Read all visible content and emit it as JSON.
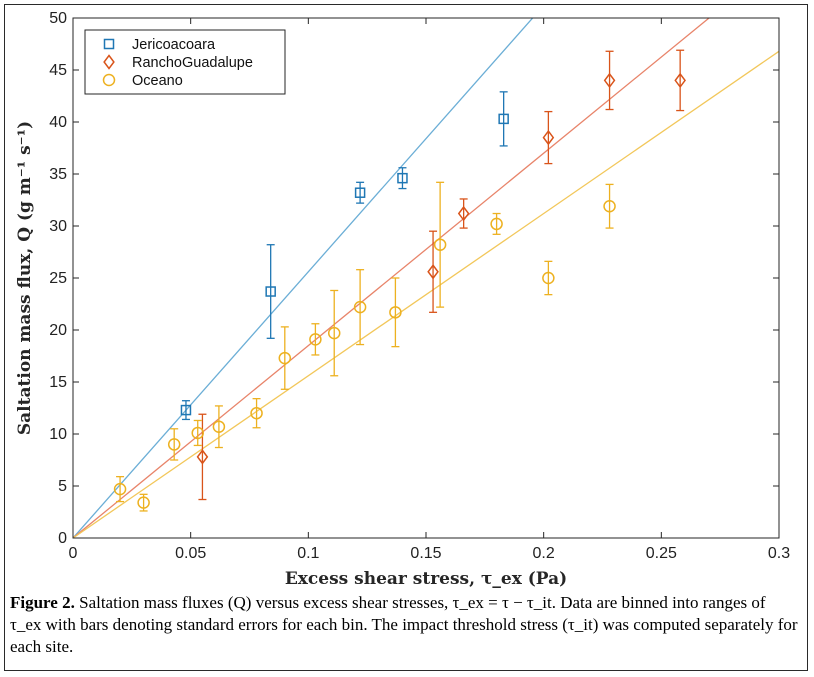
{
  "chart_data": {
    "type": "scatter",
    "xlabel": "Excess shear stress, τ_ex (Pa)",
    "ylabel": "Saltation mass flux, Q (g m⁻¹ s⁻¹)",
    "xlim": [
      0,
      0.3
    ],
    "ylim": [
      0,
      50
    ],
    "xticks": [
      "0",
      "0.05",
      "0.1",
      "0.15",
      "0.2",
      "0.25",
      "0.3"
    ],
    "yticks": [
      "0",
      "5",
      "10",
      "15",
      "20",
      "25",
      "30",
      "35",
      "40",
      "45",
      "50"
    ],
    "legend_position": "top-left",
    "grid": false,
    "series": [
      {
        "name": "Jericoacoara",
        "marker": "square",
        "color": "#1f77b4",
        "fit_color": "#6baed6",
        "fit_slope": 256,
        "points": [
          {
            "x": 0.048,
            "y": 12.3,
            "err": 0.9
          },
          {
            "x": 0.084,
            "y": 23.7,
            "err": 4.5
          },
          {
            "x": 0.122,
            "y": 33.2,
            "err": 1.0
          },
          {
            "x": 0.14,
            "y": 34.6,
            "err": 1.0
          },
          {
            "x": 0.183,
            "y": 40.3,
            "err": 2.6
          }
        ]
      },
      {
        "name": "RanchoGuadalupe",
        "marker": "diamond",
        "color": "#d9541a",
        "fit_color": "#e8846a",
        "fit_slope": 185,
        "points": [
          {
            "x": 0.055,
            "y": 7.8,
            "err": 4.1
          },
          {
            "x": 0.153,
            "y": 25.6,
            "err": 3.9
          },
          {
            "x": 0.166,
            "y": 31.2,
            "err": 1.4
          },
          {
            "x": 0.202,
            "y": 38.5,
            "err": 2.5
          },
          {
            "x": 0.228,
            "y": 44.0,
            "err": 2.8
          },
          {
            "x": 0.258,
            "y": 44.0,
            "err": 2.9
          }
        ]
      },
      {
        "name": "Oceano",
        "marker": "circle",
        "color": "#edb120",
        "fit_color": "#f2c75a",
        "fit_slope": 156,
        "points": [
          {
            "x": 0.02,
            "y": 4.7,
            "err": 1.2
          },
          {
            "x": 0.03,
            "y": 3.4,
            "err": 0.8
          },
          {
            "x": 0.043,
            "y": 9.0,
            "err": 1.5
          },
          {
            "x": 0.053,
            "y": 10.1,
            "err": 1.2
          },
          {
            "x": 0.062,
            "y": 10.7,
            "err": 2.0
          },
          {
            "x": 0.078,
            "y": 12.0,
            "err": 1.4
          },
          {
            "x": 0.09,
            "y": 17.3,
            "err": 3.0
          },
          {
            "x": 0.103,
            "y": 19.1,
            "err": 1.5
          },
          {
            "x": 0.111,
            "y": 19.7,
            "err": 4.1
          },
          {
            "x": 0.122,
            "y": 22.2,
            "err": 3.6
          },
          {
            "x": 0.137,
            "y": 21.7,
            "err": 3.3
          },
          {
            "x": 0.156,
            "y": 28.2,
            "err": 6.0
          },
          {
            "x": 0.18,
            "y": 30.2,
            "err": 1.0
          },
          {
            "x": 0.202,
            "y": 25.0,
            "err": 1.6
          },
          {
            "x": 0.228,
            "y": 31.9,
            "err": 2.1
          }
        ]
      }
    ]
  },
  "caption": {
    "bold_label": "Figure 2.",
    "text": "Saltation mass fluxes (Q) versus excess shear stresses, τ_ex = τ − τ_it. Data are binned into ranges of τ_ex with bars denoting standard errors for each bin. The impact threshold stress (τ_it) was computed separately for each site."
  }
}
